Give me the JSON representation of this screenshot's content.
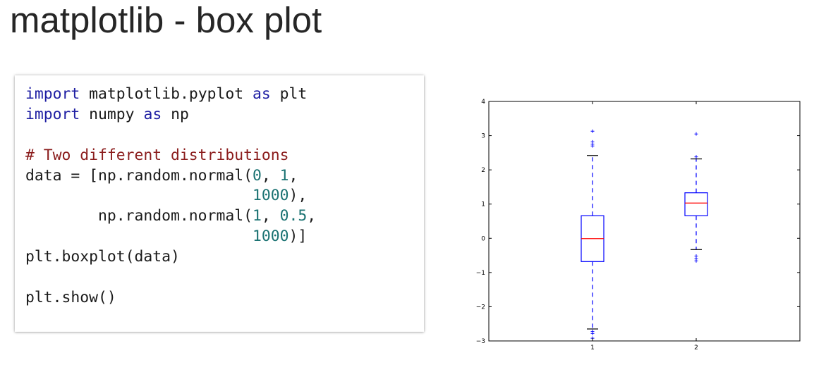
{
  "slide": {
    "title": "matplotlib - box plot"
  },
  "code": {
    "lines": [
      [
        {
          "t": "import",
          "c": "kw"
        },
        {
          "t": " matplotlib.pyplot "
        },
        {
          "t": "as",
          "c": "kw"
        },
        {
          "t": " plt"
        }
      ],
      [
        {
          "t": "import",
          "c": "kw"
        },
        {
          "t": " numpy "
        },
        {
          "t": "as",
          "c": "kw"
        },
        {
          "t": " np"
        }
      ],
      [],
      [
        {
          "t": "# Two different distributions",
          "c": "cm"
        }
      ],
      [
        {
          "t": "data = [np.random.normal("
        },
        {
          "t": "0",
          "c": "num"
        },
        {
          "t": ", "
        },
        {
          "t": "1",
          "c": "num"
        },
        {
          "t": ","
        }
      ],
      [
        {
          "t": "                         "
        },
        {
          "t": "1000",
          "c": "num"
        },
        {
          "t": "),"
        }
      ],
      [
        {
          "t": "        np.random.normal("
        },
        {
          "t": "1",
          "c": "num"
        },
        {
          "t": ", "
        },
        {
          "t": "0.5",
          "c": "num"
        },
        {
          "t": ","
        }
      ],
      [
        {
          "t": "                         "
        },
        {
          "t": "1000",
          "c": "num"
        },
        {
          "t": ")]"
        }
      ],
      [
        {
          "t": "plt.boxplot(data)"
        }
      ],
      [],
      [
        {
          "t": "plt.show()"
        }
      ]
    ]
  },
  "colors": {
    "keyword": "#1f1fa3",
    "comment": "#8b1d1d",
    "number": "#1a7272",
    "box": "#0000ff",
    "median": "#ff0000",
    "flier": "#0000ff"
  },
  "chart_data": {
    "type": "box",
    "title": "",
    "xlabel": "",
    "ylabel": "",
    "categories": [
      "1",
      "2"
    ],
    "ylim": [
      -3,
      4
    ],
    "yticks": [
      -3,
      -2,
      -1,
      0,
      1,
      2,
      3,
      4
    ],
    "ytick_labels": [
      "−3",
      "−2",
      "−1",
      "0",
      "1",
      "2",
      "3",
      "4"
    ],
    "grid": false,
    "legend": "none",
    "boxes": [
      {
        "category": "1",
        "whisker_low": -2.65,
        "q1": -0.68,
        "median": -0.01,
        "q3": 0.66,
        "whisker_high": 2.42,
        "fliers": [
          3.13,
          2.82,
          2.75,
          2.7,
          -2.72,
          -2.78,
          -2.92
        ]
      },
      {
        "category": "2",
        "whisker_low": -0.33,
        "q1": 0.66,
        "median": 1.03,
        "q3": 1.33,
        "whisker_high": 2.32,
        "fliers": [
          3.05,
          2.38,
          -0.52,
          -0.6,
          -0.66
        ]
      }
    ]
  }
}
